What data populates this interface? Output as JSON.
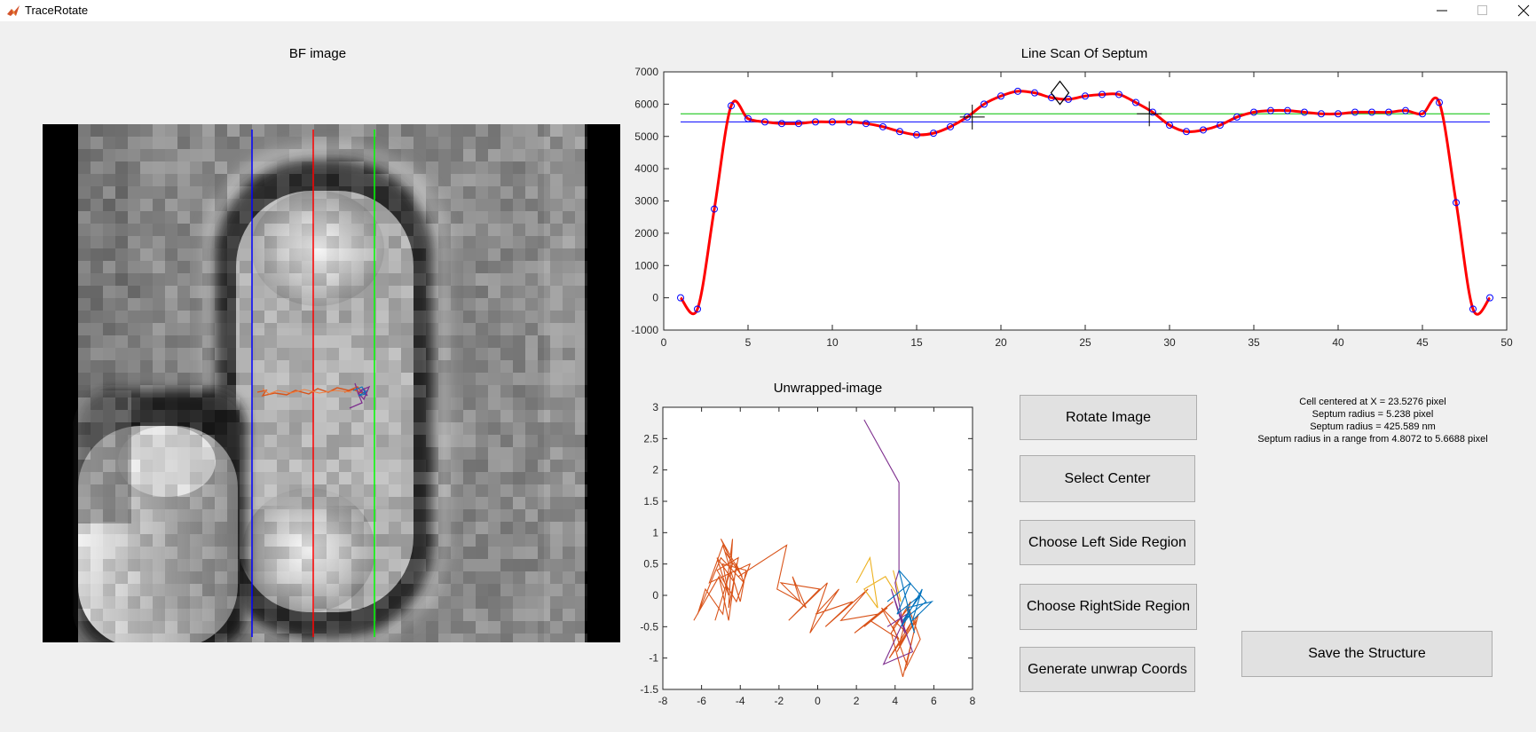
{
  "window": {
    "title": "TraceRotate"
  },
  "panels": {
    "bf_title": "BF image",
    "linescan_title": "Line Scan Of Septum",
    "unwrap_title": "Unwrapped-image"
  },
  "buttons": {
    "rotate": "Rotate Image",
    "select_center": "Select Center",
    "left_region": "Choose Left Side Region",
    "right_region": "Choose RightSide Region",
    "generate": "Generate unwrap Coords",
    "save": "Save the Structure"
  },
  "info": {
    "line1": "Cell centered at X = 23.5276 pixel",
    "line2": "Septum radius = 5.238 pixel",
    "line3": "Septum radius = 425.589 nm",
    "line4": "Septum radius in a range from 4.8072 to 5.6688 pixel"
  },
  "colors": {
    "curve": "#ff0000",
    "markers": "#0000ff",
    "green_line": "#00c000",
    "blue_line": "#0000ff",
    "trace_orange": "#d95319",
    "trace_purple": "#7e2f8e",
    "trace_blue": "#0072bd",
    "trace_yellow": "#edb120"
  },
  "chart_data": [
    {
      "type": "line",
      "title": "Line Scan Of Septum",
      "xlabel": "",
      "ylabel": "",
      "xlim": [
        0,
        50
      ],
      "ylim": [
        -1000,
        7000
      ],
      "xticks": [
        0,
        5,
        10,
        15,
        20,
        25,
        30,
        35,
        40,
        45,
        50
      ],
      "yticks": [
        -1000,
        0,
        1000,
        2000,
        3000,
        4000,
        5000,
        6000,
        7000
      ],
      "grid": false,
      "x": [
        1,
        2,
        3,
        4,
        5,
        6,
        7,
        8,
        9,
        10,
        11,
        12,
        13,
        14,
        15,
        16,
        17,
        18,
        19,
        20,
        21,
        22,
        23,
        24,
        25,
        26,
        27,
        28,
        29,
        30,
        31,
        32,
        33,
        34,
        35,
        36,
        37,
        38,
        39,
        40,
        41,
        42,
        43,
        44,
        45,
        46,
        47,
        48,
        49
      ],
      "y": [
        0,
        -350,
        2750,
        5950,
        5550,
        5450,
        5400,
        5400,
        5450,
        5450,
        5450,
        5400,
        5300,
        5150,
        5050,
        5100,
        5300,
        5600,
        6000,
        6250,
        6400,
        6350,
        6200,
        6150,
        6250,
        6300,
        6300,
        6050,
        5750,
        5350,
        5150,
        5200,
        5350,
        5600,
        5750,
        5800,
        5800,
        5750,
        5700,
        5700,
        5750,
        5750,
        5750,
        5800,
        5700,
        6050,
        2950,
        -350,
        0
      ],
      "hlines": [
        {
          "y": 5700,
          "color": "green"
        },
        {
          "y": 5450,
          "color": "blue"
        }
      ],
      "markers": [
        {
          "x": 23.5,
          "y": 6350,
          "shape": "diamond"
        },
        {
          "x": 18.3,
          "y": 5600,
          "shape": "cross"
        },
        {
          "x": 28.8,
          "y": 5700,
          "shape": "cross"
        }
      ]
    },
    {
      "type": "line",
      "title": "Unwrapped-image",
      "xlim": [
        -8,
        8
      ],
      "ylim": [
        -1.5,
        3
      ],
      "xticks": [
        -8,
        -6,
        -4,
        -2,
        0,
        2,
        4,
        6,
        8
      ],
      "yticks": [
        -1.5,
        -1,
        -0.5,
        0,
        0.5,
        1,
        1.5,
        2,
        2.5,
        3
      ],
      "series": [
        {
          "color": "orange",
          "x": [
            -6.4,
            -5.1,
            -4.8,
            -5.3,
            -4.4,
            -5.0,
            -3.9,
            -4.8,
            -4.3,
            -5.2,
            -4.6,
            -4.9,
            -3.7,
            -4.0,
            -4.9,
            -5.6,
            -3.5,
            -4.2,
            -5.2,
            -4.1,
            -4.6,
            -4.4,
            -4.9,
            -5.8,
            -6.2,
            -5.0,
            -3.8,
            -4.2,
            -4.6,
            -5.1,
            -6.4
          ],
          "y": [
            -0.4,
            0.3,
            0.1,
            -0.4,
            0.5,
            0.9,
            0.3,
            0.7,
            0.2,
            0.6,
            0.0,
            0.5,
            0.4,
            -0.1,
            0.8,
            0.2,
            0.5,
            -0.1,
            0.4,
            0.6,
            -0.2,
            0.9,
            -0.3,
            0.1,
            -0.3,
            0.6,
            0.2,
            0.5,
            -0.4,
            0.3,
            -0.4
          ]
        },
        {
          "color": "orange",
          "x": [
            -4.1,
            -1.6,
            -2.1,
            -0.9,
            -1.3,
            -0.6,
            -1.9,
            0.1,
            -1.5,
            0.5,
            -0.4,
            1.1,
            -0.1,
            1.8,
            0.4,
            2.6,
            1.2,
            3.1,
            1.9,
            3.6,
            2.4,
            3.9,
            2.7,
            4.2,
            3.3,
            4.6,
            3.7,
            4.9,
            4.1,
            5.2,
            4.4,
            3.8,
            4.8,
            4.2,
            5.1,
            4.6,
            3.9,
            4.7,
            5.3,
            4.5
          ],
          "y": [
            0.3,
            0.8,
            0.1,
            -0.1,
            0.3,
            -0.2,
            0.2,
            0.1,
            -0.4,
            0.2,
            -0.6,
            0.1,
            -0.3,
            -0.1,
            -0.5,
            0.1,
            -0.4,
            -0.3,
            -0.6,
            -0.2,
            -0.5,
            -0.1,
            -0.4,
            -0.7,
            -0.2,
            -0.6,
            -1.0,
            -0.4,
            -0.9,
            -0.3,
            -1.3,
            -0.6,
            -0.1,
            -0.8,
            -0.4,
            -1.1,
            -0.5,
            -0.2,
            -0.7,
            -1.2
          ]
        },
        {
          "color": "yellow",
          "x": [
            2.0,
            2.7,
            3.1,
            2.4,
            3.5,
            4.3,
            3.9
          ],
          "y": [
            0.2,
            0.6,
            -0.2,
            0.1,
            0.3,
            -0.1,
            0.4
          ]
        },
        {
          "color": "purple",
          "x": [
            2.4,
            4.2,
            4.2,
            4.0,
            4.5,
            3.8,
            4.9,
            3.4,
            4.6,
            3.6
          ],
          "y": [
            2.8,
            1.8,
            0.4,
            0.2,
            -0.6,
            0.1,
            -0.9,
            -1.1,
            -0.3,
            -0.5
          ]
        },
        {
          "color": "blue",
          "x": [
            3.6,
            4.8,
            4.1,
            5.3,
            4.4,
            5.6,
            4.2,
            5.0,
            4.6,
            5.9,
            4.9,
            5.4,
            4.3,
            4.8
          ],
          "y": [
            -0.1,
            0.2,
            -0.3,
            0.0,
            -0.4,
            -0.1,
            0.4,
            -0.6,
            -0.2,
            -0.1,
            -0.4,
            0.1,
            -0.5,
            -0.3
          ]
        }
      ]
    }
  ]
}
